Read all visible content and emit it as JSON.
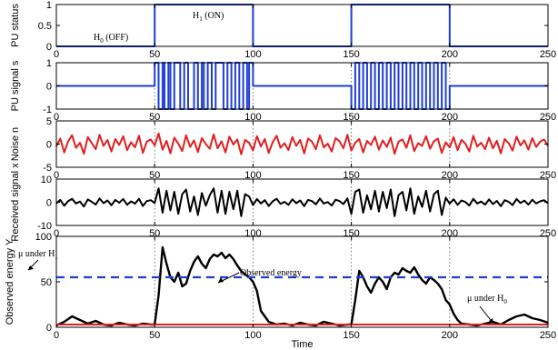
{
  "chart_data": [
    {
      "type": "line",
      "ylabel": "PU status",
      "xlim": [
        0,
        250
      ],
      "ylim": [
        0,
        1
      ],
      "yticks": [
        0,
        0.5,
        1
      ],
      "xticks": [
        0,
        50,
        100,
        150,
        200,
        250
      ],
      "series": [
        {
          "color": "#1f3fd1",
          "x": [
            0,
            50,
            50,
            100,
            100,
            150,
            150,
            200,
            200,
            250
          ],
          "y": [
            0,
            0,
            1,
            1,
            0,
            0,
            1,
            1,
            0,
            0
          ]
        }
      ],
      "annotations": [
        {
          "text": "H",
          "sub": "1",
          "tail": " (ON)"
        },
        {
          "text": "H",
          "sub": "0",
          "tail": " (OFF)"
        }
      ]
    },
    {
      "type": "line",
      "ylabel": "PU signal s",
      "xlim": [
        0,
        250
      ],
      "ylim": [
        -1,
        1
      ],
      "yticks": [
        -1,
        0,
        1
      ],
      "xticks": [
        0,
        50,
        100,
        150,
        200,
        250
      ],
      "series": [
        {
          "color": "#1f3fd1",
          "x": [
            0,
            50,
            50,
            52,
            52,
            54,
            54,
            55,
            55,
            57,
            57,
            58,
            58,
            60,
            60,
            62,
            62,
            63,
            63,
            65,
            65,
            67,
            67,
            68,
            68,
            70,
            70,
            72,
            72,
            74,
            74,
            75,
            75,
            77,
            77,
            79,
            79,
            81,
            81,
            83,
            83,
            85,
            85,
            87,
            87,
            89,
            89,
            91,
            91,
            93,
            93,
            95,
            95,
            97,
            97,
            98,
            98,
            100,
            100,
            150,
            150,
            152,
            152,
            154,
            154,
            156,
            156,
            158,
            158,
            160,
            160,
            162,
            162,
            164,
            164,
            166,
            166,
            168,
            168,
            170,
            170,
            172,
            172,
            174,
            174,
            176,
            176,
            178,
            178,
            180,
            180,
            182,
            182,
            184,
            184,
            186,
            186,
            188,
            188,
            190,
            190,
            192,
            192,
            194,
            194,
            196,
            196,
            198,
            198,
            200,
            200,
            250
          ],
          "y": [
            0,
            0,
            1,
            1,
            -1,
            -1,
            1,
            1,
            -1,
            -1,
            1,
            1,
            -1,
            -1,
            1,
            1,
            1,
            1,
            -1,
            -1,
            1,
            1,
            -1,
            -1,
            -1,
            -1,
            1,
            1,
            -1,
            -1,
            1,
            1,
            -1,
            -1,
            1,
            1,
            -1,
            -1,
            1,
            1,
            1,
            1,
            -1,
            -1,
            1,
            1,
            -1,
            -1,
            1,
            1,
            -1,
            -1,
            1,
            1,
            -1,
            -1,
            1,
            1,
            0,
            0,
            -1,
            -1,
            1,
            1,
            -1,
            -1,
            1,
            1,
            -1,
            -1,
            1,
            1,
            -1,
            -1,
            1,
            1,
            -1,
            -1,
            1,
            1,
            -1,
            -1,
            1,
            1,
            -1,
            -1,
            1,
            1,
            -1,
            -1,
            1,
            1,
            -1,
            -1,
            1,
            1,
            -1,
            -1,
            1,
            1,
            -1,
            -1,
            1,
            1,
            -1,
            -1,
            1,
            1,
            -1,
            -1,
            0,
            0
          ]
        }
      ]
    },
    {
      "type": "line",
      "ylabel": "Noise n",
      "xlim": [
        0,
        250
      ],
      "ylim": [
        -5,
        5
      ],
      "yticks": [
        -5,
        0,
        5
      ],
      "xticks": [
        0,
        50,
        100,
        150,
        200,
        250
      ],
      "series": [
        {
          "color": "#e02020",
          "x": [
            0,
            2,
            4,
            6,
            8,
            10,
            12,
            14,
            16,
            18,
            20,
            22,
            24,
            26,
            28,
            30,
            32,
            34,
            36,
            38,
            40,
            42,
            44,
            46,
            48,
            50,
            52,
            54,
            56,
            58,
            60,
            62,
            64,
            66,
            68,
            70,
            72,
            74,
            76,
            78,
            80,
            82,
            84,
            86,
            88,
            90,
            92,
            94,
            96,
            98,
            100,
            102,
            104,
            106,
            108,
            110,
            112,
            114,
            116,
            118,
            120,
            122,
            124,
            126,
            128,
            130,
            132,
            134,
            136,
            138,
            140,
            142,
            144,
            146,
            148,
            150,
            152,
            154,
            156,
            158,
            160,
            162,
            164,
            166,
            168,
            170,
            172,
            174,
            176,
            178,
            180,
            182,
            184,
            186,
            188,
            190,
            192,
            194,
            196,
            198,
            200,
            202,
            204,
            206,
            208,
            210,
            212,
            214,
            216,
            218,
            220,
            222,
            224,
            226,
            228,
            230,
            232,
            234,
            236,
            238,
            240,
            242,
            244,
            246,
            248,
            250
          ],
          "y": [
            -0.5,
            1.2,
            -1.8,
            0.6,
            1.9,
            -0.8,
            0.3,
            -2.1,
            1.5,
            0.2,
            -1.1,
            2.0,
            -0.4,
            0.9,
            -1.6,
            1.1,
            -0.2,
            1.7,
            -1.3,
            0.4,
            -0.7,
            1.8,
            -1.9,
            0.5,
            1.0,
            -0.3,
            2.3,
            -1.2,
            0.7,
            -2.0,
            1.4,
            0.1,
            -1.5,
            1.9,
            -0.6,
            0.8,
            -1.7,
            1.3,
            0.0,
            -1.0,
            2.1,
            -0.9,
            0.6,
            -1.8,
            1.6,
            -0.1,
            1.0,
            -2.2,
            0.9,
            0.3,
            -1.4,
            1.7,
            -0.5,
            1.1,
            -1.9,
            0.4,
            1.8,
            -0.8,
            0.2,
            -1.3,
            1.5,
            -0.4,
            0.9,
            -2.0,
            1.2,
            0.5,
            -1.1,
            1.9,
            -0.7,
            0.1,
            -1.6,
            1.3,
            0.6,
            -0.9,
            2.0,
            -1.4,
            0.3,
            1.1,
            -1.8,
            0.7,
            -0.2,
            1.6,
            -1.2,
            0.8,
            -0.6,
            1.4,
            -2.1,
            0.5,
            1.0,
            -0.8,
            1.9,
            -1.5,
            0.2,
            -0.4,
            1.7,
            -1.0,
            0.6,
            1.2,
            -1.9,
            0.4,
            -0.7,
            1.5,
            -1.3,
            0.9,
            0.1,
            -1.6,
            1.8,
            -0.5,
            0.3,
            -1.1,
            1.4,
            -0.9,
            0.7,
            -2.0,
            1.1,
            0.2,
            -1.4,
            1.6,
            -0.3,
            0.8,
            -1.2,
            1.3,
            -0.6,
            0.5,
            1.0,
            -0.4
          ]
        }
      ]
    },
    {
      "type": "line",
      "ylabel": "Received signal x",
      "xlim": [
        0,
        250
      ],
      "ylim": [
        -10,
        10
      ],
      "yticks": [
        -10,
        0,
        10
      ],
      "xticks": [
        0,
        50,
        100,
        150,
        200,
        250
      ],
      "series": [
        {
          "color": "#000000",
          "x": [
            0,
            2,
            4,
            6,
            8,
            10,
            12,
            14,
            16,
            18,
            20,
            22,
            24,
            26,
            28,
            30,
            32,
            34,
            36,
            38,
            40,
            42,
            44,
            46,
            48,
            50,
            52,
            54,
            56,
            58,
            60,
            62,
            64,
            66,
            68,
            70,
            72,
            74,
            76,
            78,
            80,
            82,
            84,
            86,
            88,
            90,
            92,
            94,
            96,
            98,
            100,
            102,
            104,
            106,
            108,
            110,
            112,
            114,
            116,
            118,
            120,
            122,
            124,
            126,
            128,
            130,
            132,
            134,
            136,
            138,
            140,
            142,
            144,
            146,
            148,
            150,
            152,
            154,
            156,
            158,
            160,
            162,
            164,
            166,
            168,
            170,
            172,
            174,
            176,
            178,
            180,
            182,
            184,
            186,
            188,
            190,
            192,
            194,
            196,
            198,
            200,
            202,
            204,
            206,
            208,
            210,
            212,
            214,
            216,
            218,
            220,
            222,
            224,
            226,
            228,
            230,
            232,
            234,
            236,
            238,
            240,
            242,
            244,
            246,
            248,
            250
          ],
          "y": [
            -0.5,
            1.0,
            -1.5,
            0.5,
            1.5,
            -0.5,
            0.3,
            -1.8,
            1.2,
            0.2,
            -1.0,
            1.6,
            -0.4,
            0.8,
            -1.3,
            1.0,
            -0.2,
            1.4,
            -1.1,
            0.4,
            -0.6,
            1.5,
            -1.6,
            0.5,
            0.9,
            -0.3,
            6.0,
            -4.5,
            5.0,
            -3.5,
            4.5,
            -5.0,
            3.5,
            5.5,
            -4.0,
            2.5,
            -5.5,
            4.0,
            -1.5,
            3.0,
            6.0,
            -4.5,
            5.0,
            -5.0,
            4.5,
            -3.0,
            5.0,
            -6.0,
            3.5,
            2.5,
            -1.2,
            1.4,
            -0.5,
            0.9,
            -1.6,
            0.4,
            1.5,
            -0.7,
            0.2,
            -1.1,
            1.3,
            -0.4,
            0.8,
            -1.7,
            1.0,
            0.5,
            -0.9,
            1.6,
            -0.6,
            0.1,
            -1.4,
            1.1,
            0.5,
            -0.8,
            1.7,
            -5.0,
            4.5,
            5.5,
            -4.5,
            3.0,
            -3.0,
            5.0,
            -4.0,
            4.5,
            -2.5,
            5.5,
            -6.0,
            3.0,
            4.5,
            -3.5,
            6.0,
            -5.0,
            2.5,
            -2.0,
            5.0,
            -4.0,
            3.5,
            5.0,
            -5.5,
            2.0,
            -0.6,
            1.3,
            -1.1,
            0.8,
            0.1,
            -1.4,
            1.5,
            -0.5,
            0.3,
            -1.0,
            1.2,
            -0.8,
            0.6,
            -1.7,
            0.9,
            0.2,
            -1.2,
            1.4,
            -0.3,
            0.7,
            -1.0,
            1.1,
            -0.5,
            0.4,
            0.9,
            -0.4
          ]
        }
      ]
    },
    {
      "type": "line",
      "ylabel": "Observed energy Y",
      "xlabel": "Time",
      "xlim": [
        0,
        250
      ],
      "ylim": [
        0,
        100
      ],
      "yticks": [
        0,
        50,
        100
      ],
      "xticks": [
        0,
        50,
        100,
        150,
        200,
        250
      ],
      "series": [
        {
          "color": "#000000",
          "style": "solid",
          "x": [
            0,
            4,
            8,
            12,
            16,
            20,
            24,
            28,
            32,
            36,
            40,
            44,
            48,
            50,
            52,
            54,
            56,
            58,
            60,
            62,
            64,
            66,
            68,
            70,
            72,
            74,
            76,
            78,
            80,
            82,
            84,
            86,
            88,
            90,
            92,
            94,
            96,
            98,
            100,
            102,
            104,
            108,
            112,
            116,
            120,
            124,
            128,
            132,
            136,
            140,
            144,
            148,
            150,
            152,
            154,
            156,
            158,
            160,
            162,
            164,
            166,
            168,
            170,
            172,
            174,
            176,
            178,
            180,
            182,
            184,
            186,
            188,
            190,
            192,
            194,
            196,
            198,
            200,
            202,
            204,
            206,
            210,
            214,
            218,
            222,
            226,
            230,
            234,
            238,
            242,
            246,
            250
          ],
          "y": [
            2,
            6,
            12,
            8,
            4,
            7,
            3,
            2,
            5,
            3,
            2,
            4,
            3,
            3,
            35,
            88,
            70,
            55,
            50,
            60,
            45,
            48,
            62,
            72,
            78,
            70,
            65,
            75,
            80,
            78,
            82,
            76,
            80,
            75,
            68,
            62,
            58,
            55,
            50,
            40,
            18,
            6,
            3,
            4,
            2,
            5,
            3,
            2,
            6,
            4,
            2,
            3,
            3,
            30,
            62,
            55,
            45,
            38,
            48,
            55,
            50,
            42,
            55,
            60,
            58,
            65,
            62,
            60,
            66,
            58,
            52,
            48,
            55,
            52,
            48,
            42,
            30,
            25,
            15,
            8,
            4,
            3,
            2,
            4,
            6,
            3,
            8,
            12,
            14,
            10,
            8,
            5
          ]
        },
        {
          "color": "#1f3fd1",
          "style": "dashed",
          "x": [
            0,
            250
          ],
          "y": [
            55,
            55
          ]
        },
        {
          "color": "#e02020",
          "style": "solid",
          "x": [
            0,
            250
          ],
          "y": [
            3,
            3
          ]
        }
      ],
      "annotations": [
        {
          "text": "μ under H",
          "sub": "1"
        },
        {
          "text": "Observed energy"
        },
        {
          "text": "μ under H",
          "sub": "0"
        }
      ]
    }
  ]
}
